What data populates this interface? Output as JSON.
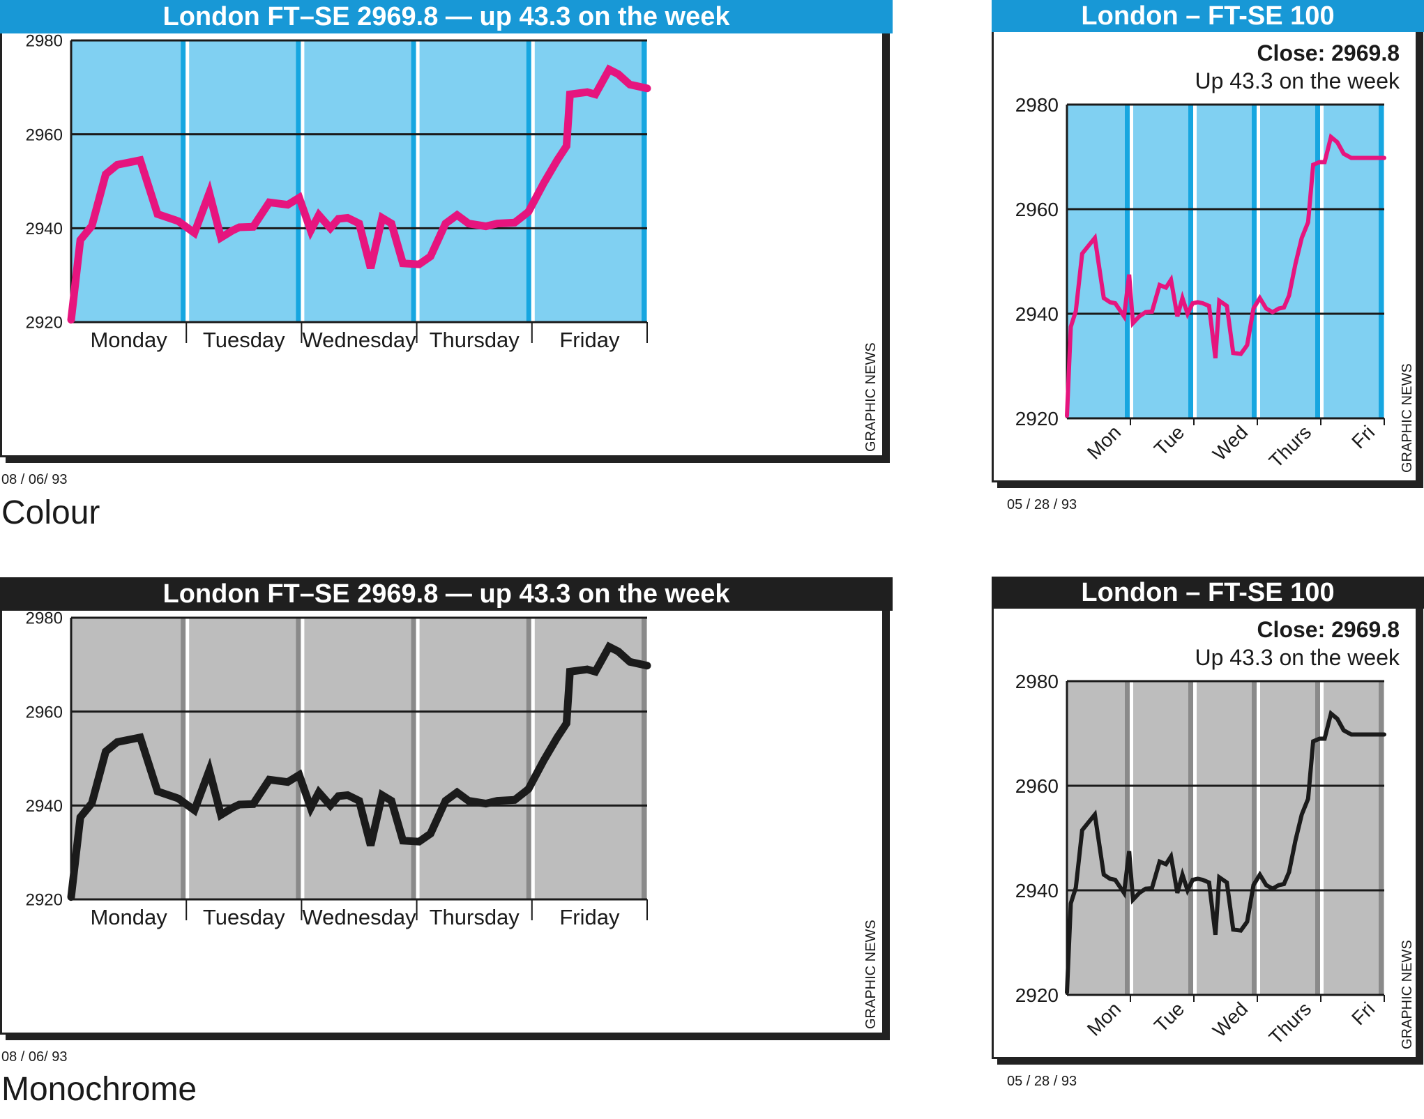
{
  "colors": {
    "colour_bg": "#80d0f2",
    "colour_divider": "#17a6e0",
    "colour_title": "#1898d6",
    "colour_line": "#e6157e",
    "mono_bg": "#bdbdbd",
    "mono_divider": "#8a8a8a",
    "mono_title": "#1f1f1f",
    "mono_line": "#1b1b1b"
  },
  "captions": {
    "colour": "Colour",
    "mono": "Monochrome"
  },
  "panels": {
    "colour_large": {
      "title": "London FT–SE 2969.8 — up 43.3 on the week",
      "date": "08 / 06/  93",
      "credit": "GRAPHIC NEWS"
    },
    "colour_small": {
      "title": "London – FT-SE 100",
      "close": "Close: 2969.8",
      "up": "Up 43.3 on the week",
      "date": "05 / 28 / 93",
      "credit": "GRAPHIC NEWS"
    },
    "mono_large": {
      "title": "London FT–SE 2969.8 — up 43.3 on the week",
      "date": "08 / 06/  93",
      "credit": "GRAPHIC NEWS"
    },
    "mono_small": {
      "title": "London – FT-SE 100",
      "close": "Close: 2969.8",
      "up": "Up 43.3 on the week",
      "date": "05 / 28 / 93",
      "credit": "GRAPHIC NEWS"
    }
  },
  "chart_data": [
    {
      "type": "line",
      "title": "London FT–SE 2969.8 — up 43.3 on the week",
      "categories": [
        "Monday",
        "Tuesday",
        "Wednesday",
        "Thursday",
        "Friday"
      ],
      "ylim": [
        2920,
        2980
      ],
      "yticks": [
        "2920",
        "2940",
        "2960",
        "2980"
      ],
      "grid": true,
      "series": [
        {
          "color": "#e6157e",
          "x": [
            0,
            0.08,
            0.18,
            0.3,
            0.4,
            0.6,
            0.75,
            0.93,
            1.07,
            1.2,
            1.3,
            1.4,
            1.46,
            1.58,
            1.72,
            1.88,
            1.98,
            2.08,
            2.15,
            2.25,
            2.32,
            2.4,
            2.5,
            2.6,
            2.7,
            2.78,
            2.88,
            3.02,
            3.12,
            3.25,
            3.35,
            3.45,
            3.6,
            3.7,
            3.85,
            3.97,
            4.1,
            4.22,
            4.3,
            4.33,
            4.48,
            4.55,
            4.67,
            4.75,
            4.85,
            5.0
          ],
          "values": [
            2920.5,
            2937.5,
            2940.5,
            2951.5,
            2953.5,
            2954.5,
            2943,
            2941.5,
            2939,
            2947.5,
            2938,
            2939.5,
            2940.2,
            2940.3,
            2945.5,
            2945,
            2946.5,
            2939.5,
            2942.8,
            2940,
            2942,
            2942.2,
            2941,
            2931.5,
            2942.2,
            2941,
            2932.5,
            2932.3,
            2934,
            2941,
            2942.8,
            2941,
            2940.4,
            2941,
            2941.2,
            2943.5,
            2949.5,
            2954.5,
            2957.5,
            2968.5,
            2969,
            2968.5,
            2973.8,
            2972.8,
            2970.6,
            2969.8
          ]
        }
      ]
    },
    {
      "type": "line",
      "title": "London – FT-SE 100",
      "subtitle": "Close: 2969.8 Up 43.3 on the week",
      "categories": [
        "Mon",
        "Tue",
        "Wed",
        "Thurs",
        "Fri"
      ],
      "ylim": [
        2920,
        2980
      ],
      "yticks": [
        "2920",
        "2940",
        "2960",
        "2980"
      ],
      "grid": true,
      "series": [
        {
          "color": "#e6157e",
          "x": [
            0,
            0.06,
            0.14,
            0.24,
            0.34,
            0.44,
            0.58,
            0.68,
            0.76,
            0.9,
            0.98,
            1.04,
            1.14,
            1.24,
            1.34,
            1.46,
            1.56,
            1.64,
            1.74,
            1.82,
            1.9,
            1.98,
            2.06,
            2.14,
            2.24,
            2.34,
            2.4,
            2.52,
            2.62,
            2.74,
            2.84,
            2.94,
            3.04,
            3.14,
            3.24,
            3.34,
            3.42,
            3.5,
            3.6,
            3.7,
            3.8,
            3.88,
            3.98,
            4.06,
            4.16,
            4.26,
            4.36,
            4.48,
            4.58,
            4.7,
            4.8,
            4.9,
            5.0
          ],
          "values": [
            2920.5,
            2937.5,
            2940.5,
            2951.5,
            2953,
            2954.5,
            2943,
            2942.2,
            2942,
            2939.5,
            2947.5,
            2938.2,
            2939.5,
            2940.3,
            2940.4,
            2945.5,
            2945,
            2946.5,
            2939.5,
            2943,
            2940,
            2942,
            2942.2,
            2942,
            2941.5,
            2931.5,
            2942.5,
            2941.5,
            2932.5,
            2932.3,
            2934,
            2941,
            2943,
            2941,
            2940.3,
            2941,
            2941.2,
            2943.5,
            2949.5,
            2954.5,
            2957.5,
            2968.5,
            2969,
            2969,
            2973.8,
            2972.8,
            2970.6,
            2969.8,
            2969.8,
            2969.8,
            2969.8,
            2969.8,
            2969.8
          ]
        }
      ]
    },
    {
      "type": "line",
      "title": "London FT–SE 2969.8 — up 43.3 on the week",
      "categories": [
        "Monday",
        "Tuesday",
        "Wednesday",
        "Thursday",
        "Friday"
      ],
      "ylim": [
        2920,
        2980
      ],
      "yticks": [
        "2920",
        "2940",
        "2960",
        "2980"
      ],
      "grid": true,
      "series": [
        {
          "color": "#1b1b1b",
          "x": [
            0,
            0.08,
            0.18,
            0.3,
            0.4,
            0.6,
            0.75,
            0.93,
            1.07,
            1.2,
            1.3,
            1.4,
            1.46,
            1.58,
            1.72,
            1.88,
            1.98,
            2.08,
            2.15,
            2.25,
            2.32,
            2.4,
            2.5,
            2.6,
            2.7,
            2.78,
            2.88,
            3.02,
            3.12,
            3.25,
            3.35,
            3.45,
            3.6,
            3.7,
            3.85,
            3.97,
            4.1,
            4.22,
            4.3,
            4.33,
            4.48,
            4.55,
            4.67,
            4.75,
            4.85,
            5.0
          ],
          "values": [
            2920.5,
            2937.5,
            2940.5,
            2951.5,
            2953.5,
            2954.5,
            2943,
            2941.5,
            2939,
            2947.5,
            2938,
            2939.5,
            2940.2,
            2940.3,
            2945.5,
            2945,
            2946.5,
            2939.5,
            2942.8,
            2940,
            2942,
            2942.2,
            2941,
            2931.5,
            2942.2,
            2941,
            2932.5,
            2932.3,
            2934,
            2941,
            2942.8,
            2941,
            2940.4,
            2941,
            2941.2,
            2943.5,
            2949.5,
            2954.5,
            2957.5,
            2968.5,
            2969,
            2968.5,
            2973.8,
            2972.8,
            2970.6,
            2969.8
          ]
        }
      ]
    },
    {
      "type": "line",
      "title": "London – FT-SE 100",
      "subtitle": "Close: 2969.8 Up 43.3 on the week",
      "categories": [
        "Mon",
        "Tue",
        "Wed",
        "Thurs",
        "Fri"
      ],
      "ylim": [
        2920,
        2980
      ],
      "yticks": [
        "2920",
        "2940",
        "2960",
        "2980"
      ],
      "grid": true,
      "series": [
        {
          "color": "#1b1b1b",
          "x": [
            0,
            0.06,
            0.14,
            0.24,
            0.34,
            0.44,
            0.58,
            0.68,
            0.76,
            0.9,
            0.98,
            1.04,
            1.14,
            1.24,
            1.34,
            1.46,
            1.56,
            1.64,
            1.74,
            1.82,
            1.9,
            1.98,
            2.06,
            2.14,
            2.24,
            2.34,
            2.4,
            2.52,
            2.62,
            2.74,
            2.84,
            2.94,
            3.04,
            3.14,
            3.24,
            3.34,
            3.42,
            3.5,
            3.6,
            3.7,
            3.8,
            3.88,
            3.98,
            4.06,
            4.16,
            4.26,
            4.36,
            4.48,
            4.58,
            4.7,
            4.8,
            4.9,
            5.0
          ],
          "values": [
            2920.5,
            2937.5,
            2940.5,
            2951.5,
            2953,
            2954.5,
            2943,
            2942.2,
            2942,
            2939.5,
            2947.5,
            2938.2,
            2939.5,
            2940.3,
            2940.4,
            2945.5,
            2945,
            2946.5,
            2939.5,
            2943,
            2940,
            2942,
            2942.2,
            2942,
            2941.5,
            2931.5,
            2942.5,
            2941.5,
            2932.5,
            2932.3,
            2934,
            2941,
            2943,
            2941,
            2940.3,
            2941,
            2941.2,
            2943.5,
            2949.5,
            2954.5,
            2957.5,
            2968.5,
            2969,
            2969,
            2973.8,
            2972.8,
            2970.6,
            2969.8,
            2969.8,
            2969.8,
            2969.8,
            2969.8,
            2969.8
          ]
        }
      ]
    }
  ]
}
